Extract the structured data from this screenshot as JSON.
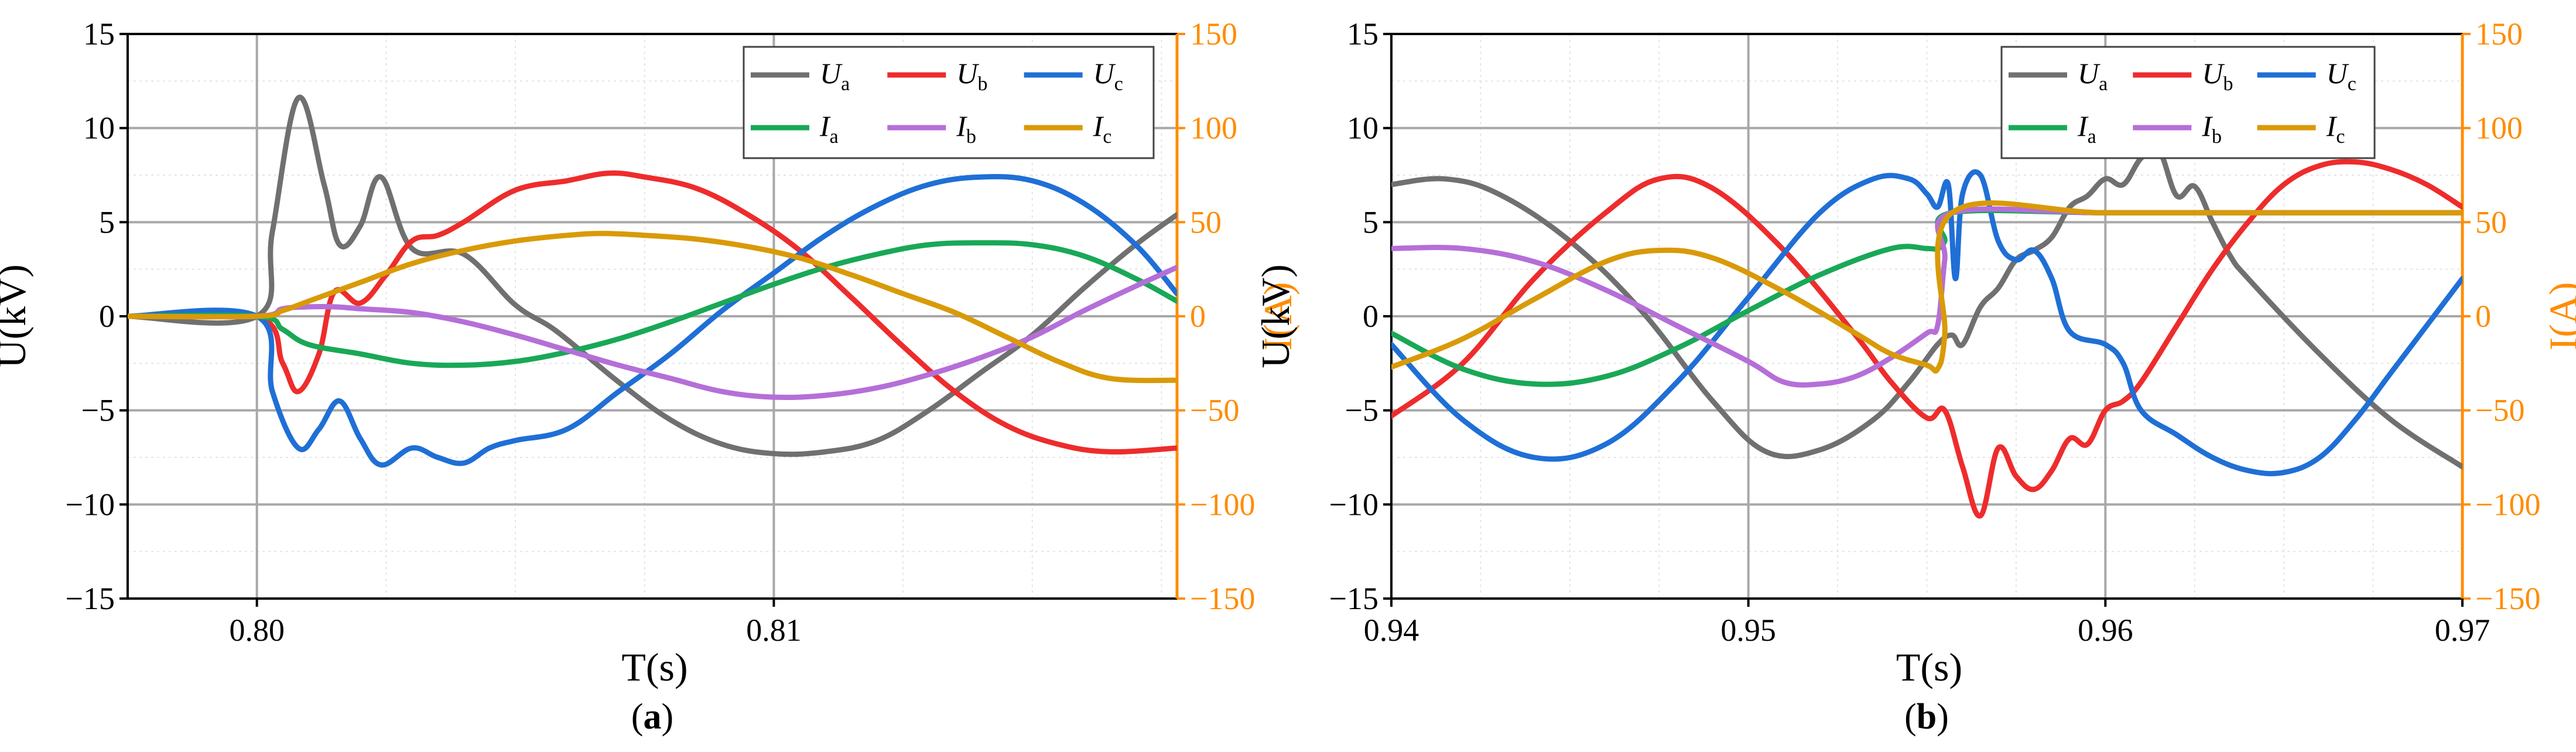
{
  "chart_data": [
    {
      "type": "line",
      "panel_label": "a",
      "xlabel": "T(s)",
      "ylabel": "U(kV)",
      "ylabel_right": "I(A)",
      "xlim": [
        0.7975,
        0.8178
      ],
      "ylim": [
        -15,
        15
      ],
      "ylim_right": [
        -150,
        150
      ],
      "x_ticks": [
        0.8,
        0.81
      ],
      "x_tick_labels": [
        "0.80",
        "0.81"
      ],
      "y_ticks": [
        -15,
        -10,
        -5,
        0,
        5,
        10,
        15
      ],
      "y_tick_labels": [
        "−15",
        "−10",
        "−5",
        "0",
        "5",
        "10",
        "15"
      ],
      "y_right_ticks": [
        -150,
        -100,
        -50,
        0,
        50,
        100,
        150
      ],
      "y_right_tick_labels": [
        "−150",
        "−100",
        "−50",
        "0",
        "50",
        "100",
        "150"
      ],
      "grid": true,
      "legend_position": "top-right",
      "series": [
        {
          "name": "Ua",
          "label_main": "U",
          "label_sub": "a",
          "axis": "left",
          "color": "#707070",
          "x": [
            0.7975,
            0.8,
            0.8003,
            0.8008,
            0.8013,
            0.8016,
            0.802,
            0.8024,
            0.803,
            0.804,
            0.805,
            0.8058,
            0.807,
            0.808,
            0.809,
            0.81,
            0.811,
            0.812,
            0.813,
            0.814,
            0.815,
            0.816,
            0.817,
            0.8178
          ],
          "y": [
            0,
            0,
            4.5,
            11.6,
            7.0,
            3.8,
            4.8,
            7.4,
            3.6,
            3.3,
            0.6,
            -0.8,
            -3.5,
            -5.5,
            -6.8,
            -7.3,
            -7.2,
            -6.6,
            -5.0,
            -3.0,
            -1.0,
            1.5,
            3.8,
            5.4
          ]
        },
        {
          "name": "Ub",
          "label_main": "U",
          "label_sub": "b",
          "axis": "left",
          "color": "#ee2c2c",
          "x": [
            0.7975,
            0.8,
            0.8005,
            0.8008,
            0.8012,
            0.8015,
            0.802,
            0.8025,
            0.803,
            0.8035,
            0.804,
            0.805,
            0.806,
            0.8068,
            0.8075,
            0.8085,
            0.8095,
            0.8105,
            0.8115,
            0.8125,
            0.8135,
            0.8145,
            0.8155,
            0.8165,
            0.8178
          ],
          "y": [
            0,
            0,
            -2.5,
            -4.0,
            -2.0,
            1.3,
            0.7,
            2.2,
            4.0,
            4.3,
            5.0,
            6.7,
            7.2,
            7.6,
            7.4,
            6.8,
            5.4,
            3.5,
            1.0,
            -1.6,
            -4.0,
            -5.8,
            -6.8,
            -7.2,
            -7.0
          ]
        },
        {
          "name": "Uc",
          "label_main": "U",
          "label_sub": "c",
          "axis": "left",
          "color": "#1f6fd6",
          "x": [
            0.7975,
            0.8,
            0.8003,
            0.8008,
            0.8012,
            0.8016,
            0.802,
            0.8024,
            0.803,
            0.8035,
            0.804,
            0.8045,
            0.805,
            0.806,
            0.807,
            0.808,
            0.809,
            0.81,
            0.811,
            0.812,
            0.813,
            0.814,
            0.815,
            0.816,
            0.817,
            0.8178
          ],
          "y": [
            0,
            0,
            -4.0,
            -7.0,
            -6.0,
            -4.5,
            -6.5,
            -7.9,
            -7.0,
            -7.5,
            -7.8,
            -7.0,
            -6.6,
            -6.0,
            -4.0,
            -2.0,
            0.3,
            2.3,
            4.3,
            5.9,
            7.0,
            7.4,
            7.2,
            6.0,
            3.8,
            1.2
          ]
        },
        {
          "name": "Ia",
          "label_main": "I",
          "label_sub": "a",
          "axis": "right",
          "color": "#19a857",
          "x": [
            0.7975,
            0.8,
            0.8005,
            0.801,
            0.802,
            0.803,
            0.804,
            0.805,
            0.806,
            0.807,
            0.808,
            0.809,
            0.81,
            0.811,
            0.812,
            0.813,
            0.814,
            0.815,
            0.816,
            0.817,
            0.8178
          ],
          "y": [
            0,
            0,
            -7,
            -15,
            -20,
            -25,
            -26,
            -24,
            -19,
            -12,
            -3,
            7,
            17,
            26,
            33,
            38,
            39,
            38,
            32,
            20,
            8
          ]
        },
        {
          "name": "Ib",
          "label_main": "I",
          "label_sub": "b",
          "axis": "right",
          "color": "#b56fd8",
          "x": [
            0.7975,
            0.8,
            0.8005,
            0.801,
            0.8015,
            0.802,
            0.803,
            0.804,
            0.805,
            0.806,
            0.807,
            0.808,
            0.809,
            0.81,
            0.811,
            0.812,
            0.813,
            0.814,
            0.815,
            0.816,
            0.817,
            0.8178
          ],
          "y": [
            0,
            0,
            4,
            5,
            5,
            4,
            2,
            -3,
            -10,
            -18,
            -26,
            -33,
            -40,
            -43,
            -42,
            -38,
            -31,
            -22,
            -11,
            3,
            16,
            26
          ]
        },
        {
          "name": "Ic",
          "label_main": "I",
          "label_sub": "c",
          "axis": "right",
          "color": "#d99a07",
          "x": [
            0.7975,
            0.8,
            0.8005,
            0.801,
            0.802,
            0.803,
            0.804,
            0.805,
            0.806,
            0.8067,
            0.8075,
            0.8085,
            0.8095,
            0.8105,
            0.8115,
            0.8125,
            0.8135,
            0.8145,
            0.8155,
            0.8165,
            0.8178
          ],
          "y": [
            0,
            0,
            3,
            8,
            18,
            28,
            35,
            40,
            43,
            44,
            43,
            41,
            37,
            31,
            22,
            12,
            2,
            -11,
            -24,
            -33,
            -34
          ]
        }
      ]
    },
    {
      "type": "line",
      "panel_label": "b",
      "xlabel": "T(s)",
      "ylabel": "U(kV)",
      "ylabel_right": "I(A)",
      "xlim": [
        0.94,
        0.97
      ],
      "ylim": [
        -15,
        15
      ],
      "ylim_right": [
        -150,
        150
      ],
      "x_ticks": [
        0.94,
        0.95,
        0.96,
        0.97
      ],
      "x_tick_labels": [
        "0.94",
        "0.95",
        "0.96",
        "0.97"
      ],
      "y_ticks": [
        -15,
        -10,
        -5,
        0,
        5,
        10,
        15
      ],
      "y_tick_labels": [
        "−15",
        "−10",
        "−5",
        "0",
        "5",
        "10",
        "15"
      ],
      "y_right_ticks": [
        -150,
        -100,
        -50,
        0,
        50,
        100,
        150
      ],
      "y_right_tick_labels": [
        "−150",
        "−100",
        "−50",
        "0",
        "50",
        "100",
        "150"
      ],
      "grid": true,
      "legend_position": "top-right",
      "series": [
        {
          "name": "Ua",
          "label_main": "U",
          "label_sub": "a",
          "axis": "left",
          "color": "#707070",
          "x": [
            0.94,
            0.9415,
            0.943,
            0.945,
            0.947,
            0.949,
            0.9505,
            0.952,
            0.9535,
            0.9545,
            0.9553,
            0.9557,
            0.956,
            0.9565,
            0.957,
            0.9575,
            0.958,
            0.9585,
            0.959,
            0.9595,
            0.96,
            0.9605,
            0.961,
            0.9615,
            0.962,
            0.9625,
            0.963,
            0.9635,
            0.964,
            0.966,
            0.968,
            0.97
          ],
          "y": [
            7.0,
            7.3,
            6.5,
            4.0,
            0.3,
            -4.5,
            -7.2,
            -7.1,
            -5.5,
            -3.5,
            -1.5,
            -1.0,
            -1.5,
            0.5,
            1.5,
            3.0,
            3.5,
            4.2,
            5.8,
            6.4,
            7.3,
            7.0,
            8.4,
            8.8,
            6.4,
            6.9,
            5.0,
            3.2,
            2.0,
            -2.0,
            -5.5,
            -8.0
          ]
        },
        {
          "name": "Ub",
          "label_main": "U",
          "label_sub": "b",
          "axis": "left",
          "color": "#ee2c2c",
          "x": [
            0.94,
            0.942,
            0.944,
            0.946,
            0.9475,
            0.949,
            0.951,
            0.953,
            0.954,
            0.955,
            0.9555,
            0.956,
            0.9565,
            0.957,
            0.9575,
            0.958,
            0.9585,
            0.959,
            0.9595,
            0.96,
            0.9605,
            0.961,
            0.962,
            0.963,
            0.964,
            0.965,
            0.966,
            0.967,
            0.968,
            0.969,
            0.97
          ],
          "y": [
            -5.3,
            -2.5,
            2.0,
            5.5,
            7.3,
            6.8,
            3.5,
            -1.0,
            -3.5,
            -5.4,
            -5.0,
            -8.0,
            -10.6,
            -7.0,
            -8.5,
            -9.2,
            -8.2,
            -6.5,
            -6.8,
            -5.0,
            -4.5,
            -3.5,
            -0.5,
            2.5,
            5.0,
            7.0,
            8.0,
            8.2,
            7.8,
            7.0,
            5.8
          ]
        },
        {
          "name": "Uc",
          "label_main": "U",
          "label_sub": "c",
          "axis": "left",
          "color": "#1f6fd6",
          "x": [
            0.94,
            0.942,
            0.944,
            0.946,
            0.948,
            0.95,
            0.952,
            0.9535,
            0.9545,
            0.955,
            0.9553,
            0.9556,
            0.9558,
            0.956,
            0.9565,
            0.957,
            0.9575,
            0.958,
            0.9585,
            0.959,
            0.96,
            0.9605,
            0.961,
            0.962,
            0.963,
            0.964,
            0.965,
            0.966,
            0.967,
            0.968,
            0.969,
            0.97
          ],
          "y": [
            -1.5,
            -5.5,
            -7.5,
            -6.8,
            -3.5,
            1.0,
            5.5,
            7.3,
            7.3,
            6.5,
            5.8,
            7.0,
            2.0,
            6.5,
            7.5,
            4.0,
            3.0,
            3.5,
            2.0,
            -0.8,
            -1.5,
            -2.5,
            -5.0,
            -6.3,
            -7.5,
            -8.2,
            -8.3,
            -7.5,
            -5.5,
            -3.0,
            -0.5,
            2.0
          ]
        },
        {
          "name": "Ia",
          "label_main": "I",
          "label_sub": "a",
          "axis": "right",
          "color": "#19a857",
          "x": [
            0.94,
            0.942,
            0.944,
            0.946,
            0.948,
            0.95,
            0.952,
            0.954,
            0.955,
            0.9553,
            0.9555,
            0.9557,
            0.96,
            0.965,
            0.97
          ],
          "y": [
            -9,
            -28,
            -36,
            -32,
            -17,
            3,
            22,
            36,
            36,
            36,
            40,
            55,
            55,
            55,
            55
          ]
        },
        {
          "name": "Ib",
          "label_main": "I",
          "label_sub": "b",
          "axis": "right",
          "color": "#b56fd8",
          "x": [
            0.94,
            0.942,
            0.944,
            0.946,
            0.948,
            0.95,
            0.951,
            0.952,
            0.953,
            0.954,
            0.955,
            0.9553,
            0.9555,
            0.9557,
            0.96,
            0.965,
            0.97
          ],
          "y": [
            36,
            36,
            29,
            14,
            -5,
            -24,
            -35,
            -36,
            -32,
            -22,
            -9,
            -5,
            30,
            55,
            55,
            55,
            55
          ]
        },
        {
          "name": "Ic",
          "label_main": "I",
          "label_sub": "c",
          "axis": "right",
          "color": "#d99a07",
          "x": [
            0.94,
            0.942,
            0.944,
            0.946,
            0.9475,
            0.949,
            0.951,
            0.953,
            0.954,
            0.955,
            0.9553,
            0.9555,
            0.9557,
            0.96,
            0.965,
            0.97
          ],
          "y": [
            -27,
            -12,
            9,
            29,
            35,
            31,
            13,
            -9,
            -20,
            -26,
            -28,
            -10,
            55,
            55,
            55,
            55
          ]
        }
      ]
    }
  ]
}
